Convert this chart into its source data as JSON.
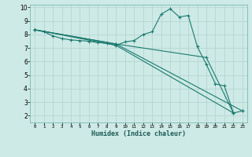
{
  "xlabel": "Humidex (Indice chaleur)",
  "bg_color": "#ceeae6",
  "grid_color": "#b8d8d4",
  "line_color": "#1a7a6e",
  "marker": "+",
  "xlim": [
    -0.5,
    23.5
  ],
  "ylim": [
    1.5,
    10.2
  ],
  "yticks": [
    2,
    3,
    4,
    5,
    6,
    7,
    8,
    9,
    10
  ],
  "xticks": [
    0,
    1,
    2,
    3,
    4,
    5,
    6,
    7,
    8,
    9,
    10,
    11,
    12,
    13,
    14,
    15,
    16,
    17,
    18,
    19,
    20,
    21,
    22,
    23
  ],
  "series": [
    {
      "x": [
        0,
        1,
        2,
        3,
        4,
        5,
        6,
        7,
        8,
        9,
        10,
        11,
        12,
        13,
        14,
        15,
        16,
        17,
        18,
        19,
        20,
        21,
        22,
        23
      ],
      "y": [
        8.35,
        8.2,
        7.9,
        7.7,
        7.6,
        7.55,
        7.5,
        7.4,
        7.35,
        7.2,
        7.45,
        7.55,
        8.0,
        8.2,
        9.5,
        9.9,
        9.3,
        9.4,
        7.1,
        5.8,
        4.35,
        4.2,
        2.2,
        2.35
      ]
    },
    {
      "x": [
        0,
        9,
        22
      ],
      "y": [
        8.35,
        7.2,
        2.2
      ]
    },
    {
      "x": [
        0,
        9,
        23
      ],
      "y": [
        8.35,
        7.3,
        2.35
      ]
    },
    {
      "x": [
        0,
        9,
        19,
        22
      ],
      "y": [
        8.35,
        7.3,
        6.3,
        2.2
      ]
    }
  ]
}
